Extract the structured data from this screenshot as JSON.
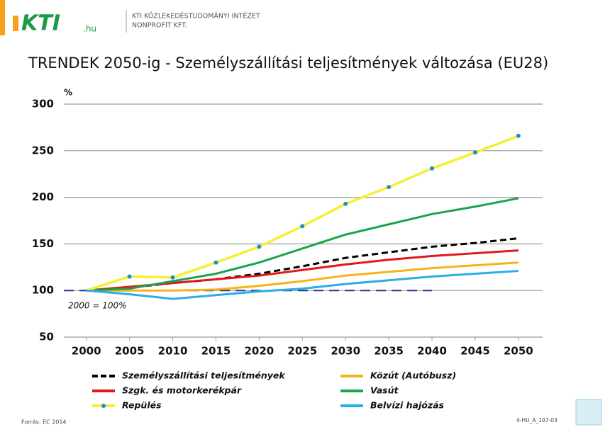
{
  "header": {
    "logo": "KTI",
    "logo_suffix": ".hu",
    "org_line1": "KTI KÖZLEKEDÉSTUDOMÁNYI INTÉZET",
    "org_line2": "NONPROFIT KFT."
  },
  "chart_data": {
    "type": "line",
    "title": "TRENDEK 2050-ig - Személyszállítási teljesítmények változása (EU28)",
    "y_label": "%",
    "x": [
      2000,
      2005,
      2010,
      2015,
      2020,
      2025,
      2030,
      2035,
      2040,
      2045,
      2050
    ],
    "xlim": [
      1997.4,
      2052.8
    ],
    "xticks": [
      2000,
      2005,
      2010,
      2015,
      2020,
      2025,
      2030,
      2035,
      2040,
      2045,
      2050
    ],
    "ylim": [
      50,
      300
    ],
    "yticks": [
      50,
      100,
      150,
      200,
      250,
      300
    ],
    "grid": true,
    "reference_line": {
      "value": 100,
      "x_end": 2040,
      "label": "2000 = 100%",
      "color": "#2b2e8c"
    },
    "series": [
      {
        "name": "Személyszállítási teljesítmények",
        "color": "#000000",
        "dash": true,
        "values": [
          100,
          103,
          108,
          112,
          118,
          126,
          135,
          141,
          147,
          151,
          156
        ]
      },
      {
        "name": "Közút (Autóbusz)",
        "color": "#f7b21a",
        "values": [
          100,
          100,
          100,
          101,
          105,
          110,
          116,
          120,
          124,
          127,
          130
        ]
      },
      {
        "name": "Szgk. és motorkerékpár",
        "color": "#e3161b",
        "values": [
          100,
          104,
          108,
          112,
          116,
          122,
          128,
          133,
          137,
          140,
          143
        ]
      },
      {
        "name": "Vasút",
        "color": "#1aa54a",
        "values": [
          100,
          102,
          110,
          118,
          130,
          145,
          160,
          171,
          182,
          190,
          199
        ]
      },
      {
        "name": "Repülés",
        "color": "#f5f032",
        "marker_color": "#1e90c8",
        "markers": true,
        "values": [
          100,
          115,
          114,
          130,
          147,
          169,
          193,
          211,
          231,
          248,
          266
        ]
      },
      {
        "name": "Belvízi hajózás",
        "color": "#29aee6",
        "values": [
          100,
          96,
          91,
          95,
          99,
          102,
          107,
          111,
          115,
          118,
          121
        ]
      }
    ]
  },
  "footer": {
    "source": "Forrás: EC 2014",
    "code": "4-HU_A_107-03"
  }
}
